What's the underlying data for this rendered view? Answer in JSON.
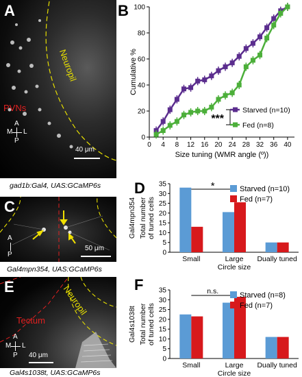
{
  "panels": {
    "A": {
      "label": "A",
      "region_labels": {
        "pvn": "PVNs",
        "neuropil": "Neuropil"
      },
      "compass": {
        "m": "M",
        "l": "L",
        "a": "A",
        "p": "P"
      },
      "scale_text": "40 μm",
      "caption": "gad1b:Gal4, UAS:GCaMP6s"
    },
    "B": {
      "label": "B",
      "significance": "***",
      "chart_data": {
        "type": "line",
        "title": "",
        "xlabel": "Size tuning (WMR angle (º))",
        "ylabel": "Cumulative %",
        "xlim": [
          0,
          42
        ],
        "ylim": [
          0,
          100
        ],
        "xticks": [
          0,
          4,
          8,
          12,
          16,
          20,
          24,
          28,
          32,
          36,
          40
        ],
        "yticks": [
          0,
          20,
          40,
          60,
          80,
          100
        ],
        "grid": false,
        "legend_position": "bottom-right",
        "series": [
          {
            "name": "Starved (n=10)",
            "color": "#5b2d8e",
            "x": [
              2,
              4,
              6,
              8,
              10,
              12,
              14,
              16,
              18,
              20,
              22,
              24,
              26,
              28,
              30,
              32,
              34,
              36,
              38,
              40
            ],
            "y": [
              5,
              12,
              21,
              29,
              37,
              38,
              43,
              44,
              47,
              51,
              54,
              57,
              62,
              68,
              72,
              77,
              84,
              91,
              97,
              100
            ]
          },
          {
            "name": "Fed (n=8)",
            "color": "#4caf3a",
            "x": [
              2,
              4,
              6,
              8,
              10,
              12,
              14,
              16,
              18,
              20,
              22,
              24,
              26,
              28,
              30,
              32,
              34,
              36,
              38,
              40
            ],
            "y": [
              2,
              5,
              9,
              12,
              17,
              19,
              20,
              20,
              23,
              29,
              32,
              34,
              40,
              54,
              59,
              63,
              76,
              86,
              95,
              100
            ]
          }
        ]
      }
    },
    "C": {
      "label": "C",
      "compass": {
        "a": "A",
        "p": "P"
      },
      "scale_text": "50 μm",
      "caption": "Gal4mpn354, UAS:GCaMP6s"
    },
    "D": {
      "label": "D",
      "side_label": "Gal4mpn354",
      "significance": "*",
      "chart_data": {
        "type": "bar",
        "categories": [
          "Small",
          "Large",
          "Dually tuned"
        ],
        "xlabel": "Circle size",
        "ylabel": "Total number of tuned cells",
        "ylim": [
          0,
          35
        ],
        "yticks": [
          0,
          5,
          10,
          15,
          20,
          25,
          30,
          35
        ],
        "legend_position": "top-right",
        "series": [
          {
            "name": "Starved (n=10)",
            "color": "#5b9bd5",
            "values": [
              33,
              20.5,
              5
            ]
          },
          {
            "name": "Fed (n=7)",
            "color": "#d7191c",
            "values": [
              13,
              25.5,
              5
            ]
          }
        ]
      }
    },
    "E": {
      "label": "E",
      "region_labels": {
        "tectum": "Tectum",
        "neuropil": "Neuropil"
      },
      "compass": {
        "m": "M",
        "l": "L",
        "a": "A",
        "p": "P"
      },
      "scale_text": "40 μm",
      "caption": "Gal4s1038t, UAS:GCaMP6s"
    },
    "F": {
      "label": "F",
      "side_label": "Gal4s1038t",
      "significance": "n.s.",
      "chart_data": {
        "type": "bar",
        "categories": [
          "Small",
          "Large",
          "Dually tuned"
        ],
        "xlabel": "Circle size",
        "ylabel": "Total number of tuned cells",
        "ylim": [
          0,
          35
        ],
        "yticks": [
          0,
          5,
          10,
          15,
          20,
          25,
          30,
          35
        ],
        "legend_position": "top-right",
        "series": [
          {
            "name": "Starved (n=8)",
            "color": "#5b9bd5",
            "values": [
              22.5,
              28.5,
              11
            ]
          },
          {
            "name": "Fed (n=7)",
            "color": "#d7191c",
            "values": [
              21.5,
              31.5,
              11
            ]
          }
        ]
      }
    }
  }
}
